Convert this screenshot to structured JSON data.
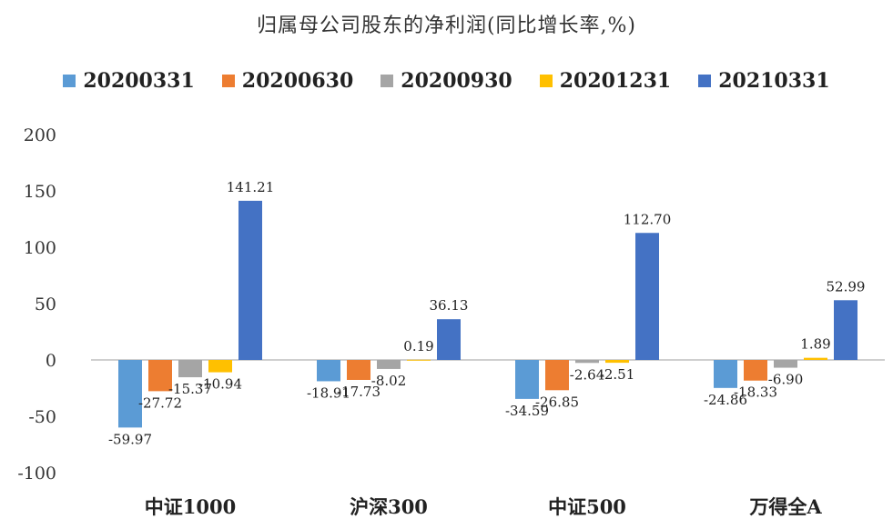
{
  "chart_data": {
    "type": "bar",
    "title": "归属母公司股东的净利润(同比增长率,%)",
    "categories": [
      "中证1000",
      "沪深300",
      "中证500",
      "万得全A"
    ],
    "series": [
      {
        "name": "20200331",
        "color": "#5B9BD5",
        "values": [
          -59.97,
          -18.91,
          -34.59,
          -24.86
        ]
      },
      {
        "name": "20200630",
        "color": "#ED7D31",
        "values": [
          -27.72,
          -17.73,
          -26.85,
          -18.33
        ]
      },
      {
        "name": "20200930",
        "color": "#A5A5A5",
        "values": [
          -15.37,
          -8.02,
          -2.64,
          -6.9
        ]
      },
      {
        "name": "20201231",
        "color": "#FFC000",
        "values": [
          -10.94,
          0.19,
          -2.51,
          1.89
        ]
      },
      {
        "name": "20210331",
        "color": "#4472C4",
        "values": [
          141.21,
          36.13,
          112.7,
          52.99
        ]
      }
    ],
    "data_labels": [
      [
        "-59.97",
        "-27.72",
        "-15.37",
        "-10.94",
        "141.21"
      ],
      [
        "-18.91",
        "-17.73",
        "-8.02",
        "0.19",
        "36.13"
      ],
      [
        "-34.59",
        "-26.85",
        "-2.64",
        "-2.51",
        "112.70"
      ],
      [
        "-24.86",
        "-18.33",
        "-6.90",
        "1.89",
        "52.99"
      ]
    ],
    "ylim": [
      -100,
      200
    ],
    "yticks": [
      200,
      150,
      100,
      50,
      0,
      -50,
      -100
    ],
    "xlabel": "",
    "ylabel": "",
    "grid": false,
    "legend_position": "top"
  }
}
